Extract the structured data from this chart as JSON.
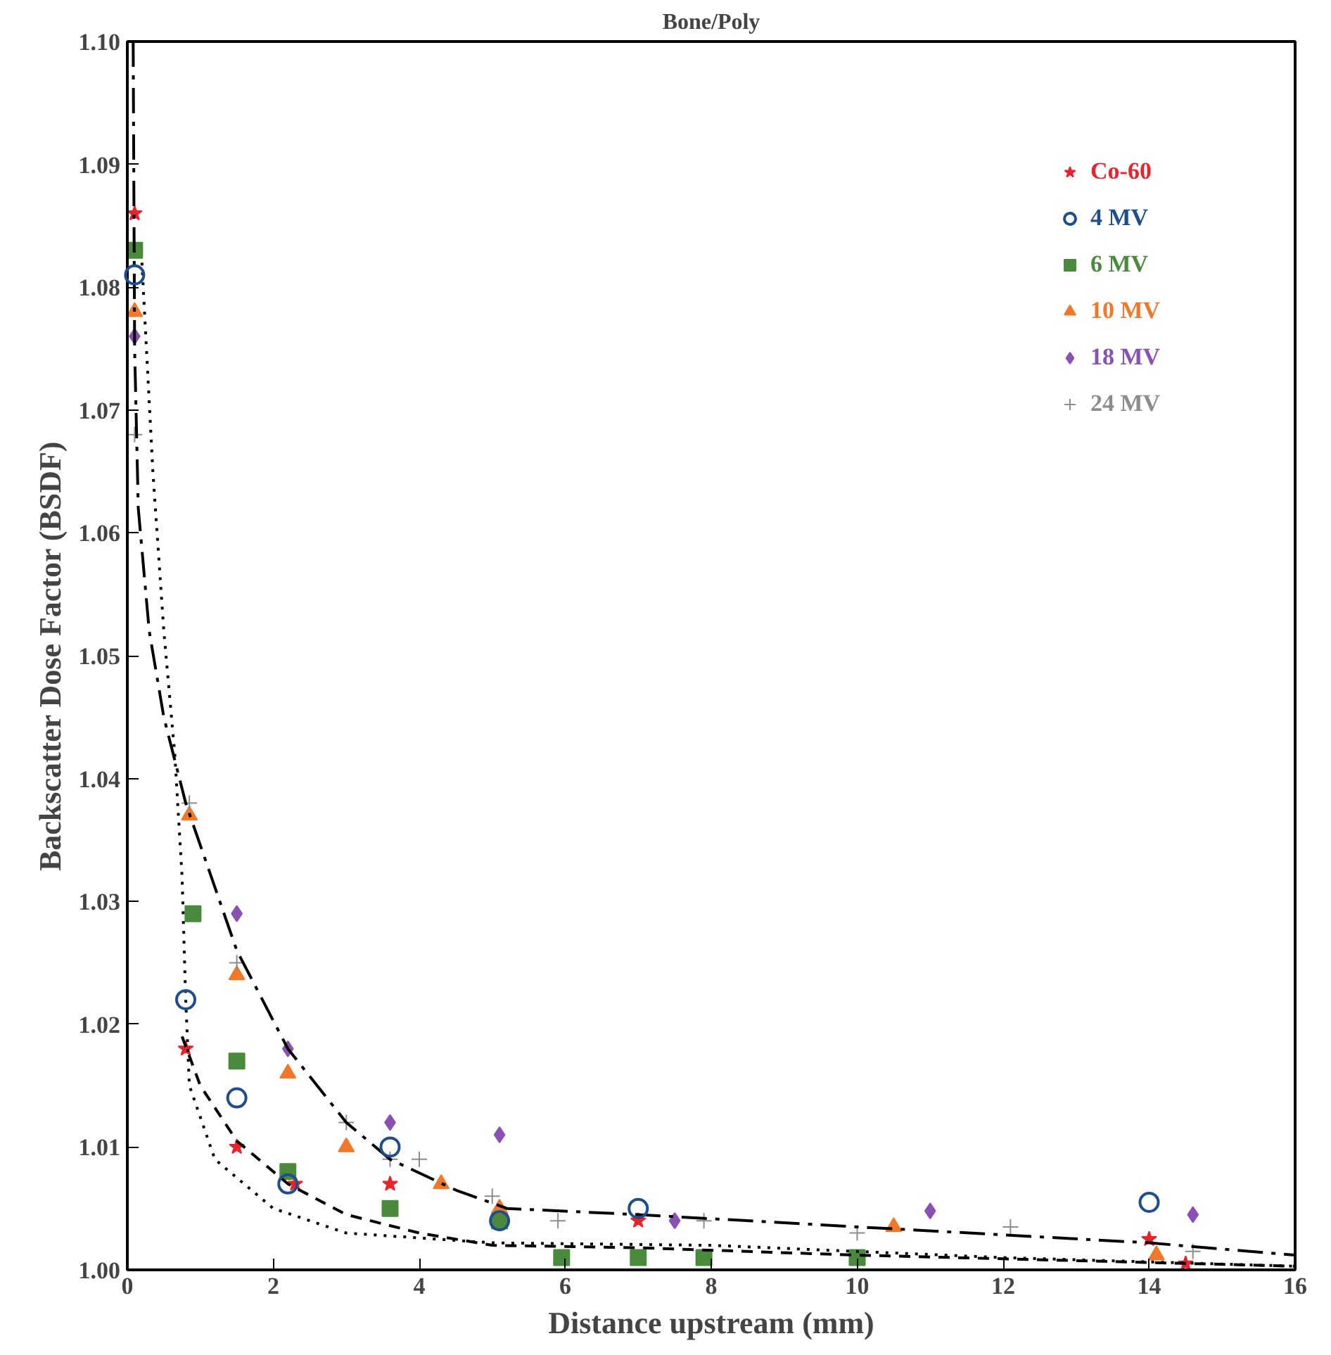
{
  "chart_data": {
    "type": "scatter",
    "title": "Bone/Poly",
    "xlabel": "Distance upstream (mm)",
    "ylabel": "Backscatter Dose Factor (BSDF)",
    "xlim": [
      0,
      16
    ],
    "xticks": [
      0,
      2,
      4,
      6,
      8,
      10,
      12,
      14,
      16
    ],
    "ylim": [
      1.0,
      1.1
    ],
    "yticks": [
      {
        "value": 1.0,
        "label": "1.00"
      },
      {
        "value": 1.01,
        "label": "1.01"
      },
      {
        "value": 1.02,
        "label": "1.02"
      },
      {
        "value": 1.03,
        "label": "1.03"
      },
      {
        "value": 1.04,
        "label": "1.04"
      },
      {
        "value": 1.05,
        "label": "1.05"
      },
      {
        "value": 1.06,
        "label": "1.06"
      },
      {
        "value": 1.07,
        "label": "1.07"
      },
      {
        "value": 1.08,
        "label": "1.08"
      },
      {
        "value": 1.09,
        "label": "1.09"
      },
      {
        "value": 1.1,
        "label": "1.10"
      }
    ],
    "grid": false,
    "legend": "top right",
    "series": [
      {
        "name": "Co-60",
        "color": "#e8232c",
        "marker": "star",
        "x": [
          0.1,
          0.8,
          1.5,
          2.3,
          3.6,
          7.0,
          14.0,
          14.5
        ],
        "values": [
          1.086,
          1.018,
          1.01,
          1.007,
          1.007,
          1.004,
          1.0025,
          1.0005
        ]
      },
      {
        "name": "4 MV",
        "color": "#1f4e8c",
        "marker": "circle",
        "x": [
          0.1,
          0.8,
          1.5,
          2.2,
          3.6,
          5.1,
          7.0,
          14.0
        ],
        "values": [
          1.081,
          1.022,
          1.014,
          1.007,
          1.01,
          1.004,
          1.005,
          1.0055
        ]
      },
      {
        "name": "6 MV",
        "color": "#4a8a3c",
        "marker": "cross",
        "x": [
          0.1,
          0.9,
          1.5,
          2.2,
          3.6,
          5.1,
          5.95,
          7.0,
          7.9,
          10.0
        ],
        "values": [
          1.083,
          1.029,
          1.017,
          1.008,
          1.005,
          1.004,
          1.001,
          1.001,
          1.001,
          1.001
        ]
      },
      {
        "name": "10 MV",
        "color": "#f07828",
        "marker": "triangle",
        "x": [
          0.1,
          0.85,
          1.5,
          2.2,
          3.0,
          4.3,
          5.1,
          10.5,
          14.1
        ],
        "values": [
          1.078,
          1.037,
          1.024,
          1.016,
          1.01,
          1.007,
          1.005,
          1.0035,
          1.0012
        ]
      },
      {
        "name": "18 MV",
        "color": "#8a50b4",
        "marker": "diamond",
        "x": [
          0.1,
          1.5,
          2.2,
          3.6,
          5.1,
          7.5,
          11.0,
          14.6
        ],
        "values": [
          1.076,
          1.029,
          1.018,
          1.012,
          1.011,
          1.004,
          1.0048,
          1.0045
        ]
      },
      {
        "name": "24 MV",
        "color": "#8c8c8c",
        "marker": "plus",
        "x": [
          0.1,
          0.85,
          1.5,
          3.0,
          3.6,
          4.0,
          5.0,
          5.9,
          7.9,
          10.0,
          12.1,
          14.6
        ],
        "values": [
          1.068,
          1.038,
          1.025,
          1.012,
          1.009,
          1.009,
          1.006,
          1.004,
          1.004,
          1.003,
          1.0035,
          1.0015
        ]
      },
      {
        "type": "line",
        "color": "#000000",
        "line_style": "dashdot",
        "x": [
          0.08,
          0.1,
          0.15,
          0.3,
          0.5,
          0.8,
          1.5,
          2.2,
          3.0,
          3.6,
          4.5,
          5.2,
          7.0,
          10.0,
          14.0,
          16.0
        ],
        "values": [
          1.1,
          1.075,
          1.062,
          1.052,
          1.045,
          1.038,
          1.026,
          1.018,
          1.012,
          1.009,
          1.0065,
          1.005,
          1.0045,
          1.0035,
          1.0022,
          1.0012
        ]
      },
      {
        "type": "line",
        "color": "#000000",
        "line_style": "dotted",
        "x": [
          0.2,
          0.35,
          0.5,
          0.65,
          0.75,
          0.8,
          0.85,
          1.2,
          2.0,
          3.0,
          5.0,
          8.0,
          12.0,
          16.0
        ],
        "values": [
          1.082,
          1.065,
          1.052,
          1.042,
          1.032,
          1.022,
          1.015,
          1.009,
          1.005,
          1.003,
          1.0022,
          1.002,
          1.001,
          1.0003
        ]
      },
      {
        "type": "line",
        "color": "#000000",
        "line_style": "dashed",
        "x": [
          0.75,
          1.0,
          1.5,
          2.2,
          3.0,
          4.0,
          5.0,
          7.0,
          10.0,
          14.0,
          16.0
        ],
        "values": [
          1.019,
          1.015,
          1.0105,
          1.007,
          1.0045,
          1.003,
          1.002,
          1.0018,
          1.0012,
          1.0006,
          1.0003
        ]
      }
    ]
  }
}
